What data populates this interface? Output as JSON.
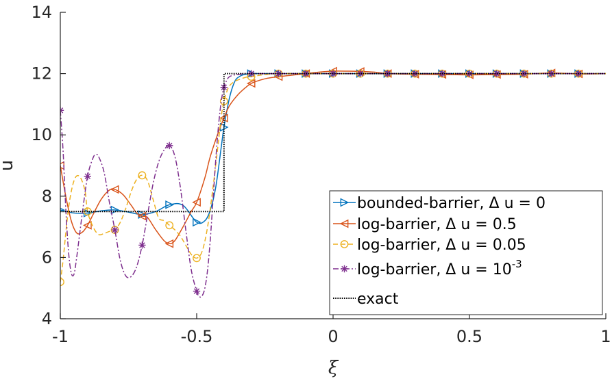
{
  "chart_data": {
    "type": "line",
    "xlabel": "ξ",
    "ylabel": "u",
    "xlim": [
      -1,
      1
    ],
    "ylim": [
      4,
      14
    ],
    "x_ticks": [
      "-1",
      "-0.5",
      "0",
      "0.5",
      "1"
    ],
    "y_ticks": [
      "4",
      "6",
      "8",
      "10",
      "12",
      "14"
    ],
    "grid": false,
    "legend_position": "bottom-right",
    "series": [
      {
        "name": "bounded-barrier, Δ u = 0",
        "label_main": "bounded-barrier, Δ u = 0",
        "color": "#0072bd",
        "line_style": "solid",
        "marker": "triangle-right",
        "x": [
          -1,
          -0.95,
          -0.9,
          -0.85,
          -0.8,
          -0.75,
          -0.7,
          -0.65,
          -0.6,
          -0.55,
          -0.5,
          -0.47,
          -0.45,
          -0.43,
          -0.41,
          -0.4,
          -0.38,
          -0.36,
          -0.34,
          -0.32,
          -0.3,
          -0.25,
          -0.2,
          -0.1,
          0,
          0.1,
          0.2,
          0.3,
          0.4,
          0.5,
          0.6,
          0.7,
          0.8,
          0.9,
          1
        ],
        "y": [
          7.55,
          7.45,
          7.45,
          7.52,
          7.55,
          7.48,
          7.4,
          7.5,
          7.72,
          7.7,
          7.15,
          7.2,
          7.55,
          8.3,
          9.6,
          10.25,
          11.2,
          11.75,
          11.92,
          11.98,
          12.0,
          12.0,
          12.0,
          12.0,
          12.0,
          12.0,
          12.0,
          12.0,
          12.0,
          12.0,
          12.0,
          12.0,
          12.0,
          12.0,
          12.0
        ],
        "marker_x": [
          -1,
          -0.9,
          -0.8,
          -0.7,
          -0.6,
          -0.5,
          -0.4,
          -0.3,
          -0.2,
          -0.1,
          0,
          0.1,
          0.2,
          0.3,
          0.4,
          0.5,
          0.6,
          0.7,
          0.8,
          0.9
        ]
      },
      {
        "name": "log-barrier, Δ u = 0.5",
        "label_main": "log-barrier, Δ u = 0.5",
        "color": "#d95319",
        "line_style": "solid",
        "marker": "triangle-left",
        "x": [
          -1,
          -0.98,
          -0.96,
          -0.94,
          -0.92,
          -0.9,
          -0.88,
          -0.85,
          -0.82,
          -0.8,
          -0.77,
          -0.74,
          -0.72,
          -0.7,
          -0.68,
          -0.65,
          -0.62,
          -0.6,
          -0.58,
          -0.55,
          -0.52,
          -0.5,
          -0.47,
          -0.45,
          -0.42,
          -0.4,
          -0.38,
          -0.35,
          -0.32,
          -0.3,
          -0.27,
          -0.24,
          -0.2,
          -0.15,
          -0.1,
          -0.05,
          0,
          0.05,
          0.1,
          0.15,
          0.2,
          0.3,
          0.4,
          0.5,
          0.6,
          0.7,
          0.8,
          0.9,
          1
        ],
        "y": [
          9.0,
          8.0,
          7.2,
          6.8,
          6.82,
          7.05,
          7.4,
          7.9,
          8.2,
          8.22,
          8.05,
          7.7,
          7.45,
          7.35,
          7.3,
          6.9,
          6.55,
          6.45,
          6.55,
          7.0,
          7.5,
          7.8,
          8.6,
          9.3,
          10.1,
          10.55,
          10.95,
          11.3,
          11.55,
          11.68,
          11.78,
          11.85,
          11.9,
          11.95,
          12.0,
          12.05,
          12.08,
          12.08,
          12.07,
          12.05,
          12.0,
          11.98,
          11.97,
          11.96,
          11.97,
          11.98,
          12.02,
          11.99,
          12.0
        ],
        "marker_x": [
          -1,
          -0.9,
          -0.8,
          -0.7,
          -0.6,
          -0.5,
          -0.4,
          -0.3,
          -0.2,
          -0.1,
          0,
          0.1,
          0.2,
          0.3,
          0.4,
          0.5,
          0.6,
          0.7,
          0.8,
          0.9
        ]
      },
      {
        "name": "log-barrier, Δ u = 0.05",
        "label_main": "log-barrier, Δ u = 0.05",
        "color": "#edb120",
        "line_style": "dashed",
        "marker": "circle",
        "x": [
          -1,
          -0.99,
          -0.97,
          -0.95,
          -0.93,
          -0.91,
          -0.9,
          -0.88,
          -0.86,
          -0.84,
          -0.82,
          -0.8,
          -0.78,
          -0.76,
          -0.74,
          -0.72,
          -0.7,
          -0.68,
          -0.66,
          -0.64,
          -0.62,
          -0.6,
          -0.58,
          -0.56,
          -0.54,
          -0.52,
          -0.5,
          -0.48,
          -0.46,
          -0.44,
          -0.42,
          -0.41,
          -0.4,
          -0.39,
          -0.38,
          -0.36,
          -0.34,
          -0.32,
          -0.3,
          -0.25,
          -0.2,
          -0.1,
          0,
          0.1,
          0.2,
          0.3,
          0.4,
          0.5,
          0.6,
          0.7,
          0.8,
          0.9,
          1
        ],
        "y": [
          5.2,
          5.9,
          7.6,
          8.5,
          8.65,
          8.2,
          7.5,
          7.0,
          6.75,
          6.78,
          6.85,
          6.9,
          7.15,
          7.6,
          8.15,
          8.55,
          8.68,
          8.5,
          7.9,
          7.3,
          7.2,
          7.05,
          6.9,
          6.7,
          6.4,
          6.1,
          5.98,
          6.2,
          7.0,
          8.3,
          9.8,
          10.6,
          11.1,
          11.4,
          11.6,
          11.75,
          11.82,
          11.88,
          11.9,
          11.97,
          12.0,
          12.0,
          12.0,
          12.0,
          12.0,
          12.0,
          12.0,
          12.0,
          12.0,
          12.0,
          12.0,
          12.0,
          12.0
        ],
        "marker_x": [
          -1,
          -0.9,
          -0.8,
          -0.7,
          -0.6,
          -0.5,
          -0.4,
          -0.3,
          -0.2,
          -0.1,
          0,
          0.1,
          0.2,
          0.3,
          0.4,
          0.5,
          0.6,
          0.7,
          0.8,
          0.9
        ]
      },
      {
        "name": "log-barrier, Δ u = 10⁻³",
        "label_main": "log-barrier, Δ u = 10",
        "label_sup": "-3",
        "color": "#7e2f8e",
        "line_style": "dashdot",
        "marker": "asterisk",
        "x": [
          -1,
          -0.99,
          -0.98,
          -0.97,
          -0.96,
          -0.95,
          -0.94,
          -0.92,
          -0.9,
          -0.88,
          -0.87,
          -0.86,
          -0.84,
          -0.82,
          -0.8,
          -0.78,
          -0.76,
          -0.74,
          -0.72,
          -0.7,
          -0.68,
          -0.66,
          -0.64,
          -0.62,
          -0.6,
          -0.58,
          -0.56,
          -0.54,
          -0.52,
          -0.5,
          -0.49,
          -0.48,
          -0.47,
          -0.46,
          -0.45,
          -0.44,
          -0.43,
          -0.42,
          -0.41,
          -0.4,
          -0.39,
          -0.38,
          -0.36,
          -0.34,
          -0.32,
          -0.3,
          -0.2,
          -0.1,
          0,
          0.1,
          0.2,
          0.3,
          0.4,
          0.5,
          0.6,
          0.7,
          0.8,
          0.9,
          1
        ],
        "y": [
          10.8,
          9.5,
          7.6,
          6.2,
          5.5,
          5.45,
          6.0,
          7.4,
          8.65,
          9.25,
          9.35,
          9.3,
          8.8,
          7.8,
          6.9,
          5.9,
          5.4,
          5.38,
          5.7,
          6.4,
          7.4,
          8.4,
          9.1,
          9.5,
          9.65,
          9.3,
          8.3,
          6.9,
          5.6,
          4.9,
          4.72,
          4.75,
          5.0,
          5.6,
          6.6,
          7.9,
          9.2,
          10.3,
          11.1,
          11.55,
          11.78,
          11.9,
          11.96,
          11.98,
          12.0,
          12.0,
          12.0,
          12.0,
          12.0,
          12.0,
          12.0,
          12.0,
          12.0,
          12.0,
          12.0,
          12.0,
          12.0,
          12.0,
          12.0
        ],
        "marker_x": [
          -1,
          -0.9,
          -0.8,
          -0.7,
          -0.6,
          -0.5,
          -0.4,
          -0.3,
          -0.2,
          -0.1,
          0,
          0.1,
          0.2,
          0.3,
          0.4,
          0.5,
          0.6,
          0.7,
          0.8,
          0.9
        ]
      },
      {
        "name": "exact",
        "label_main": "exact",
        "color": "#000000",
        "line_style": "dotted",
        "marker": "none",
        "x": [
          -1,
          -0.4,
          -0.4,
          1
        ],
        "y": [
          7.5,
          7.5,
          12,
          12
        ],
        "marker_x": []
      }
    ]
  }
}
